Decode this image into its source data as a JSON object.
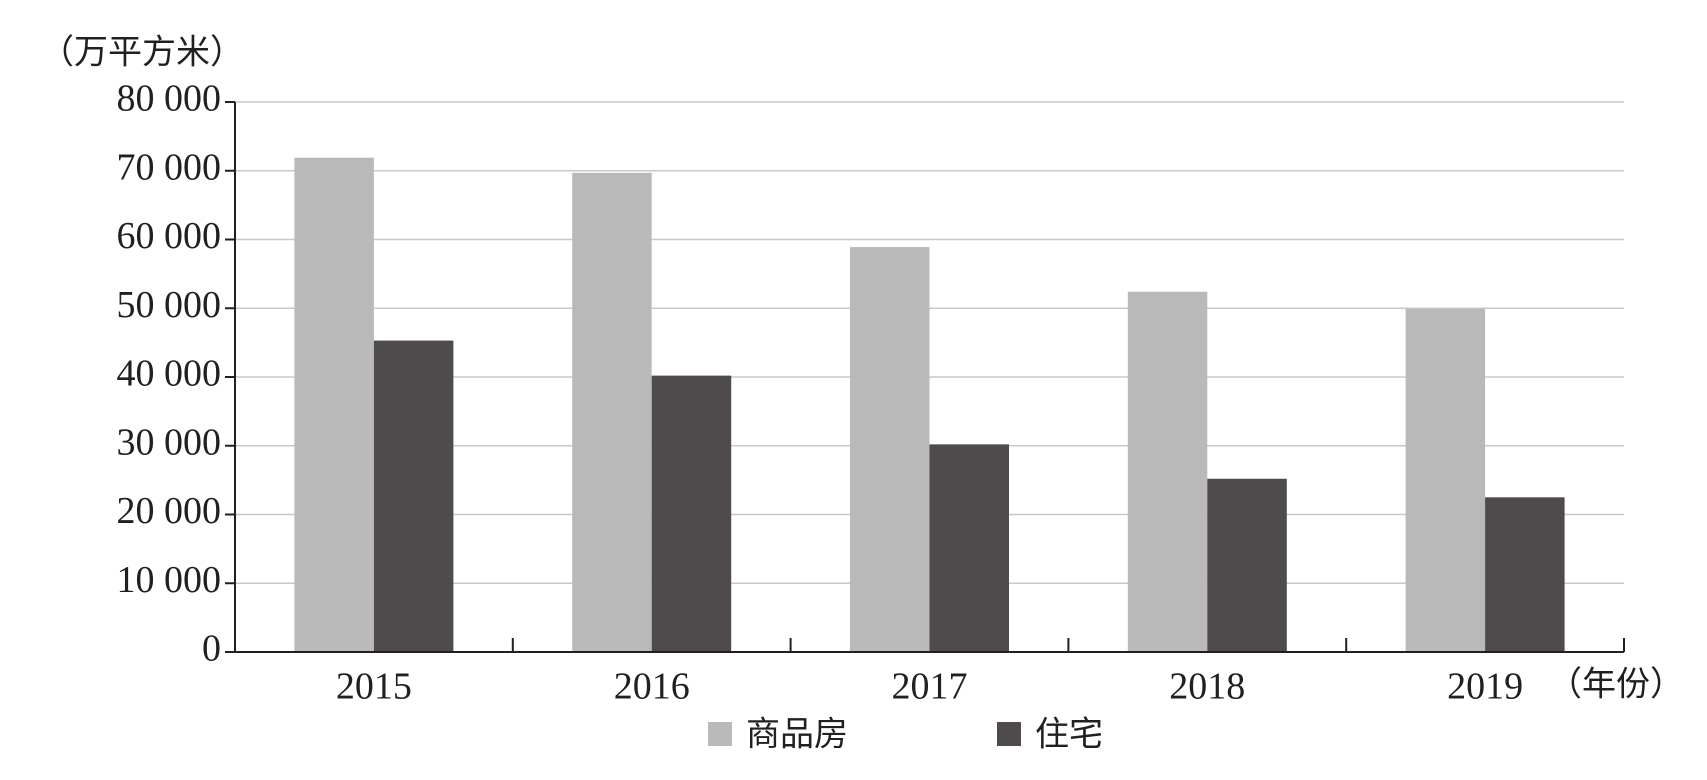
{
  "chart_data": {
    "type": "bar",
    "y_label": "（万平方米）",
    "x_label": "（年份）",
    "categories": [
      "2015",
      "2016",
      "2017",
      "2018",
      "2019"
    ],
    "series": [
      {
        "name": "商品房",
        "color": "#bab9b9",
        "values": [
          71900,
          69700,
          58900,
          52400,
          49900
        ]
      },
      {
        "name": "住宅",
        "color": "#4f4b4c",
        "values": [
          45300,
          40200,
          30200,
          25200,
          22500
        ]
      }
    ],
    "ylim": [
      0,
      80000
    ],
    "yticks": [
      0,
      {
        "value": 10000,
        "label": "10 000"
      },
      {
        "value": 20000,
        "label": "20 000"
      },
      {
        "value": 30000,
        "label": "30 000"
      },
      {
        "value": 40000,
        "label": "40 000"
      },
      {
        "value": 50000,
        "label": "50 000"
      },
      {
        "value": 60000,
        "label": "60 000"
      },
      {
        "value": 70000,
        "label": "70 000"
      },
      {
        "value": 80000,
        "label": "80 000"
      }
    ],
    "grid": true
  }
}
